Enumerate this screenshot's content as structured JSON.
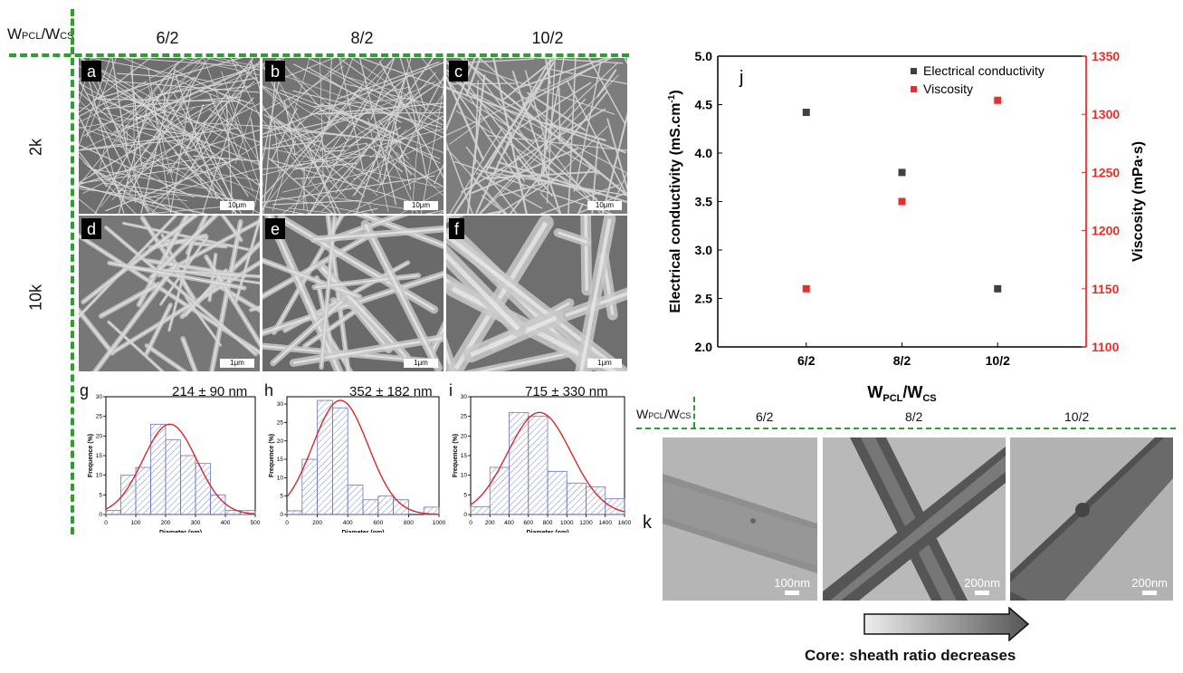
{
  "header": {
    "ratio_label": "W",
    "ratio_sub1": "PCL",
    "ratio_sep": "/W",
    "ratio_sub2": "CS",
    "columns": [
      "6/2",
      "8/2",
      "10/2"
    ],
    "rows": [
      "2k",
      "10k"
    ]
  },
  "sem": {
    "panels": [
      {
        "letter": "a",
        "scale": "10μm"
      },
      {
        "letter": "b",
        "scale": "10μm"
      },
      {
        "letter": "c",
        "scale": "10μm"
      },
      {
        "letter": "d",
        "scale": "1μm"
      },
      {
        "letter": "e",
        "scale": "1μm"
      },
      {
        "letter": "f",
        "scale": "1μm"
      }
    ]
  },
  "histograms": [
    {
      "letter": "g",
      "stat": "214 ± 90 nm",
      "ylabel": "Frequence (%)",
      "xlabel": "Diameter (nm)"
    },
    {
      "letter": "h",
      "stat": "352 ± 182 nm",
      "ylabel": "Frequence (%)",
      "xlabel": "Diameter (nm)"
    },
    {
      "letter": "i",
      "stat": "715 ± 330 nm",
      "ylabel": "Frequence (%)",
      "xlabel": "Diameter (nm)"
    }
  ],
  "chart_data": [
    {
      "type": "bar",
      "panel": "g",
      "x_bin_start": [
        0,
        50,
        100,
        150,
        200,
        250,
        300,
        350,
        400,
        450
      ],
      "bin_width": 50,
      "values": [
        1,
        10,
        12,
        23,
        19,
        15,
        13,
        5,
        1,
        1
      ],
      "xlim": [
        0,
        500
      ],
      "ylim": [
        0,
        30
      ],
      "xticks": [
        0,
        100,
        200,
        300,
        400,
        500
      ],
      "yticks": [
        0,
        5,
        10,
        15,
        20,
        25,
        30
      ],
      "fit_mean": 214,
      "fit_sd": 90,
      "fit_peak": 23,
      "xlabel": "Diameter (nm)",
      "ylabel": "Frequence (%)"
    },
    {
      "type": "bar",
      "panel": "h",
      "x_bin_start": [
        0,
        100,
        200,
        300,
        400,
        500,
        600,
        700,
        800,
        900
      ],
      "bin_width": 100,
      "values": [
        1,
        15,
        31,
        29,
        8,
        4,
        5,
        4,
        0,
        2
      ],
      "xlim": [
        0,
        1000
      ],
      "ylim": [
        0,
        32
      ],
      "xticks": [
        0,
        200,
        400,
        600,
        800,
        1000
      ],
      "yticks": [
        0,
        5,
        10,
        15,
        20,
        25,
        30
      ],
      "fit_mean": 352,
      "fit_sd": 182,
      "fit_peak": 31,
      "xlabel": "Diameter (nm)",
      "ylabel": "Frequence (%)"
    },
    {
      "type": "bar",
      "panel": "i",
      "x_bin_start": [
        0,
        200,
        400,
        600,
        800,
        1000,
        1200,
        1400
      ],
      "bin_width": 200,
      "values": [
        2,
        12,
        26,
        25,
        11,
        8,
        7,
        4
      ],
      "xlim": [
        0,
        1600
      ],
      "ylim": [
        0,
        30
      ],
      "xticks": [
        0,
        200,
        400,
        600,
        800,
        1000,
        1200,
        1400,
        1600
      ],
      "yticks": [
        0,
        5,
        10,
        15,
        20,
        25,
        30
      ],
      "fit_mean": 715,
      "fit_sd": 330,
      "fit_peak": 26,
      "xlabel": "Diameter (nm)",
      "ylabel": "Frequence (%)"
    },
    {
      "type": "scatter",
      "panel": "j",
      "categories": [
        "6/2",
        "8/2",
        "10/2"
      ],
      "series": [
        {
          "name": "Electrical conductivity",
          "axis": "left",
          "color": "#404040",
          "values": [
            4.42,
            3.8,
            2.6
          ]
        },
        {
          "name": "Viscosity",
          "axis": "right",
          "color": "#e8302a",
          "values": [
            1150,
            1225,
            1312
          ]
        }
      ],
      "ylim_left": [
        2.0,
        5.0
      ],
      "yticks_left": [
        "2.0",
        "2.5",
        "3.0",
        "3.5",
        "4.0",
        "4.5",
        "5.0"
      ],
      "ylim_right": [
        1100,
        1350
      ],
      "yticks_right": [
        "1100",
        "1150",
        "1200",
        "1250",
        "1300",
        "1350"
      ],
      "ylabel_left": "Electrical conductivity (mS.cm",
      "ylabel_left_sup": "-1",
      "ylabel_left_end": ")",
      "ylabel_right": "Viscosity (mPa·s)",
      "xlabel_main": "W",
      "xlabel_sub1": "PCL",
      "xlabel_sep": "/W",
      "xlabel_sub2": "CS",
      "legend_position": "top-right",
      "accent_right": "#e8302a"
    }
  ],
  "j_panel": {
    "letter": "j"
  },
  "tem": {
    "letter": "k",
    "columns": [
      "6/2",
      "8/2",
      "10/2"
    ],
    "scales": [
      "100nm",
      "200nm",
      "200nm"
    ],
    "caption": "Core: sheath ratio decreases"
  }
}
